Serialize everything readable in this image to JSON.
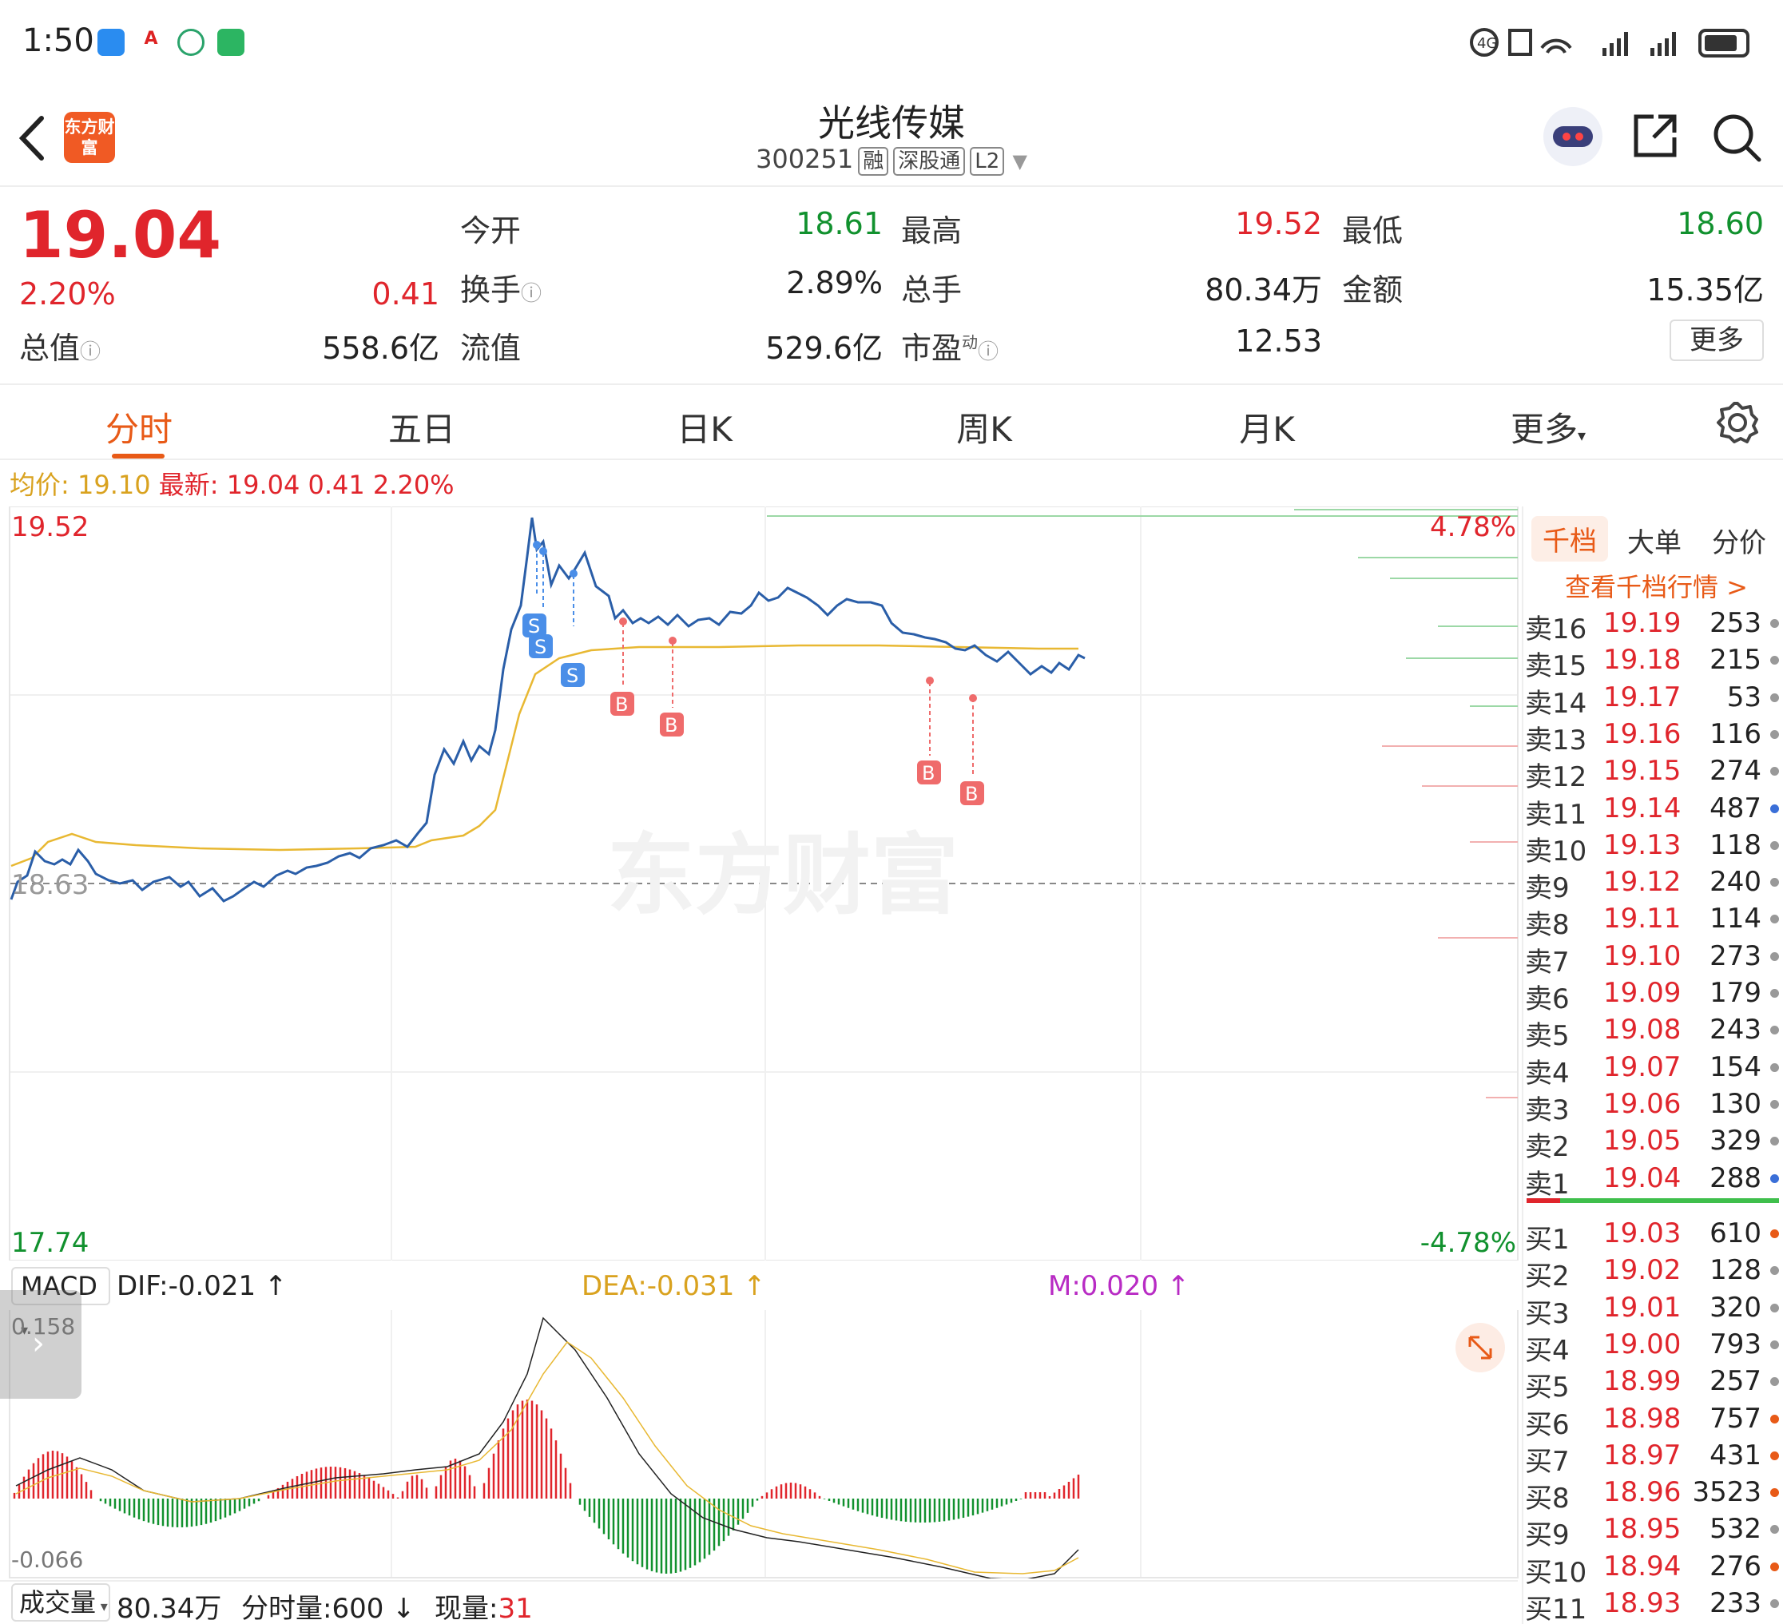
{
  "status_bar": {
    "time": "1:50"
  },
  "header": {
    "logo_text": "东方财富",
    "stock_name": "光线传媒",
    "stock_code": "300251",
    "badges": [
      "融",
      "深股通",
      "L2"
    ]
  },
  "quote": {
    "price": "19.04",
    "change_pct": "2.20%",
    "change": "0.41",
    "open_label": "今开",
    "open": "18.61",
    "high_label": "最高",
    "high": "19.52",
    "low_label": "最低",
    "low": "18.60",
    "turnover_label": "换手",
    "turnover": "2.89%",
    "volume_label": "总手",
    "volume": "80.34万",
    "amount_label": "金额",
    "amount": "15.35亿",
    "mktcap_label": "总值",
    "mktcap": "558.6亿",
    "float_label": "流值",
    "float_cap": "529.6亿",
    "pe_label": "市盈",
    "pe_sup": "动",
    "pe": "12.53",
    "more_label": "更多"
  },
  "tabs": [
    "分时",
    "五日",
    "日K",
    "周K",
    "月K",
    "更多"
  ],
  "info_line": {
    "avg_label": "均价:",
    "avg": "19.10",
    "latest_label": "最新:",
    "latest": "19.04",
    "chg": "0.41",
    "pct": "2.20%"
  },
  "chart_labels": {
    "top_price": "19.52",
    "mid_price": "18.63",
    "bottom_price": "17.74",
    "top_pct": "4.78%",
    "bottom_pct": "-4.78%",
    "watermark": "东方财富"
  },
  "macd": {
    "name": "MACD",
    "dif": "DIF:-0.021",
    "dea": "DEA:-0.031",
    "m": "M:0.020",
    "top": "0.158",
    "bottom": "-0.066"
  },
  "bottom_bar": {
    "indicator": "成交量",
    "volume": "80.34万",
    "tick_volume": "分时量:600",
    "current_label": "现量:",
    "current": "31"
  },
  "orderbook": {
    "tabs": [
      "千档",
      "大单",
      "分价"
    ],
    "link": "查看千档行情 >",
    "asks": [
      {
        "n": "卖16",
        "p": "19.19",
        "q": "253",
        "c": "#999"
      },
      {
        "n": "卖15",
        "p": "19.18",
        "q": "215",
        "c": "#999"
      },
      {
        "n": "卖14",
        "p": "19.17",
        "q": "53",
        "c": "#999"
      },
      {
        "n": "卖13",
        "p": "19.16",
        "q": "116",
        "c": "#999"
      },
      {
        "n": "卖12",
        "p": "19.15",
        "q": "274",
        "c": "#999"
      },
      {
        "n": "卖11",
        "p": "19.14",
        "q": "487",
        "c": "#3a6fd8"
      },
      {
        "n": "卖10",
        "p": "19.13",
        "q": "118",
        "c": "#999"
      },
      {
        "n": "卖9",
        "p": "19.12",
        "q": "240",
        "c": "#999"
      },
      {
        "n": "卖8",
        "p": "19.11",
        "q": "114",
        "c": "#999"
      },
      {
        "n": "卖7",
        "p": "19.10",
        "q": "273",
        "c": "#999"
      },
      {
        "n": "卖6",
        "p": "19.09",
        "q": "179",
        "c": "#999"
      },
      {
        "n": "卖5",
        "p": "19.08",
        "q": "243",
        "c": "#999"
      },
      {
        "n": "卖4",
        "p": "19.07",
        "q": "154",
        "c": "#999"
      },
      {
        "n": "卖3",
        "p": "19.06",
        "q": "130",
        "c": "#999"
      },
      {
        "n": "卖2",
        "p": "19.05",
        "q": "329",
        "c": "#999"
      },
      {
        "n": "卖1",
        "p": "19.04",
        "q": "288",
        "c": "#3a6fd8"
      }
    ],
    "bids": [
      {
        "n": "买1",
        "p": "19.03",
        "q": "610",
        "c": "#e85a17"
      },
      {
        "n": "买2",
        "p": "19.02",
        "q": "128",
        "c": "#999"
      },
      {
        "n": "买3",
        "p": "19.01",
        "q": "320",
        "c": "#999"
      },
      {
        "n": "买4",
        "p": "19.00",
        "q": "793",
        "c": "#999"
      },
      {
        "n": "买5",
        "p": "18.99",
        "q": "257",
        "c": "#999"
      },
      {
        "n": "买6",
        "p": "18.98",
        "q": "757",
        "c": "#e85a17"
      },
      {
        "n": "买7",
        "p": "18.97",
        "q": "431",
        "c": "#e85a17"
      },
      {
        "n": "买8",
        "p": "18.96",
        "q": "3523",
        "c": "#e85a17"
      },
      {
        "n": "买9",
        "p": "18.95",
        "q": "532",
        "c": "#999"
      },
      {
        "n": "买10",
        "p": "18.94",
        "q": "276",
        "c": "#e85a17"
      },
      {
        "n": "买11",
        "p": "18.93",
        "q": "233",
        "c": "#999"
      }
    ]
  },
  "colors": {
    "up": "#e0252c",
    "down": "#11912e",
    "accent": "#e85a17",
    "price_line": "#2a5ea8",
    "avg_line": "#e8b832"
  }
}
